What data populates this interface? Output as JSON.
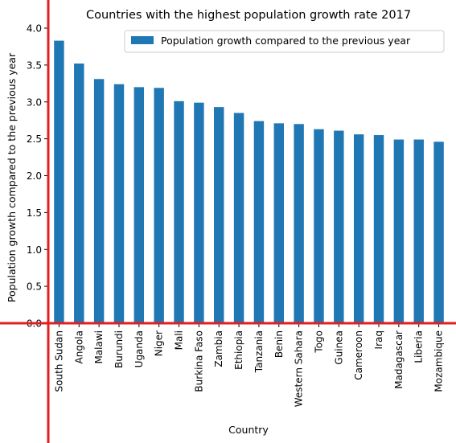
{
  "chart_data": {
    "type": "bar",
    "title": "Countries with the highest population growth rate 2017",
    "xlabel": "Country",
    "ylabel": "Population growth compared to the previous year",
    "ylim": [
      0,
      4.2
    ],
    "yticks": [
      "0.0",
      "0.5",
      "1.0",
      "1.5",
      "2.0",
      "2.5",
      "3.0",
      "3.5",
      "4.0"
    ],
    "grid": false,
    "legend_position": "top-right",
    "categories": [
      "South Sudan",
      "Angola",
      "Malawi",
      "Burundi",
      "Uganda",
      "Niger",
      "Mali",
      "Burkina Faso",
      "Zambia",
      "Ethiopia",
      "Tanzania",
      "Benin",
      "Western Sahara",
      "Togo",
      "Guinea",
      "Cameroon",
      "Iraq",
      "Madagascar",
      "Liberia",
      "Mozambique"
    ],
    "series": [
      {
        "name": "Population growth compared to the previous year",
        "color": "#1f77b4",
        "values": [
          3.83,
          3.52,
          3.31,
          3.24,
          3.2,
          3.19,
          3.01,
          2.99,
          2.93,
          2.85,
          2.74,
          2.71,
          2.7,
          2.63,
          2.61,
          2.56,
          2.55,
          2.49,
          2.49,
          2.46
        ]
      }
    ],
    "axis_line_color": "#e02020"
  }
}
